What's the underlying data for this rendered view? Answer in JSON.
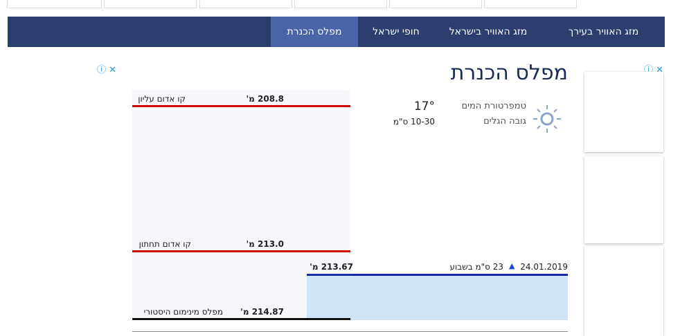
{
  "nav": {
    "items": [
      "מזג האוויר בעירך",
      "מזג האוויר בישראל",
      "חופי ישראל",
      "מפלס הכנרת"
    ]
  },
  "page": {
    "title": "מפלס הכנרת"
  },
  "weather": {
    "water_temp_label": "טמפרטורת המים",
    "water_temp": "17°",
    "waves_label": "גובה הגלים",
    "waves": "10-30 ס\"מ"
  },
  "levels": {
    "upper_red": {
      "label": "קו אדום עליון",
      "value": "208.8 מ'"
    },
    "lower_red": {
      "label": "קו אדום תחתון",
      "value": "213.0 מ'"
    },
    "historic_min": {
      "label": "מפלס מינימום היסטורי",
      "value": "214.87 מ'"
    },
    "current": {
      "value": "213.67 מ'",
      "date": "24.01.2019",
      "change": "23 ס\"מ בשבוע"
    }
  }
}
